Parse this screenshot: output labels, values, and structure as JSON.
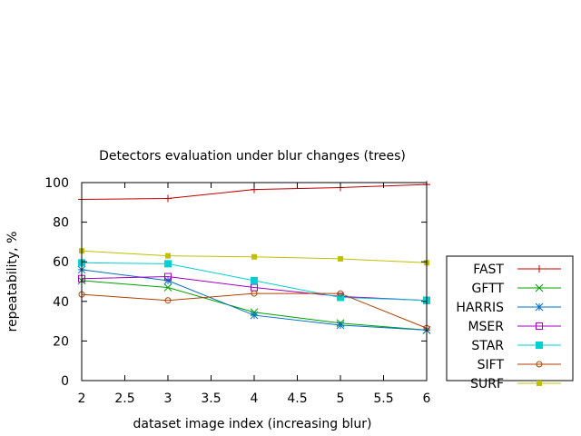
{
  "chart_data": {
    "type": "line",
    "title": "Detectors evaluation under blur changes (trees)",
    "xlabel": "dataset image index (increasing blur)",
    "ylabel": "repeatability, %",
    "xlim": [
      2,
      6
    ],
    "ylim": [
      0,
      100
    ],
    "x_ticks": [
      "2",
      "2.5",
      "3",
      "3.5",
      "4",
      "4.5",
      "5",
      "5.5",
      "6"
    ],
    "y_ticks": [
      "0",
      "20",
      "40",
      "60",
      "80",
      "100"
    ],
    "x": [
      2,
      3,
      4,
      5,
      6
    ],
    "grid": false,
    "legend_position": "outside-right",
    "series": [
      {
        "name": "FAST",
        "color": "#c00000",
        "marker": "plus",
        "values": [
          91.5,
          92.0,
          96.5,
          97.5,
          99.0
        ]
      },
      {
        "name": "GFTT",
        "color": "#00a000",
        "marker": "cross",
        "values": [
          50.5,
          47.0,
          34.5,
          29.0,
          25.5
        ]
      },
      {
        "name": "HARRIS",
        "color": "#0070c0",
        "marker": "star",
        "values": [
          56.0,
          50.5,
          33.0,
          28.0,
          25.5
        ]
      },
      {
        "name": "MSER",
        "color": "#a000c0",
        "marker": "square-open",
        "values": [
          51.5,
          52.5,
          47.0,
          42.5,
          40.5
        ]
      },
      {
        "name": "STAR",
        "color": "#00d0d0",
        "marker": "square-filled",
        "values": [
          59.5,
          59.0,
          50.5,
          42.0,
          40.5
        ]
      },
      {
        "name": "SIFT",
        "color": "#b04000",
        "marker": "circle-open",
        "values": [
          43.5,
          40.5,
          44.0,
          44.0,
          26.5
        ]
      },
      {
        "name": "SURF",
        "color": "#c0c000",
        "marker": "square-small",
        "values": [
          65.5,
          63.0,
          62.5,
          61.5,
          59.5
        ]
      }
    ]
  }
}
